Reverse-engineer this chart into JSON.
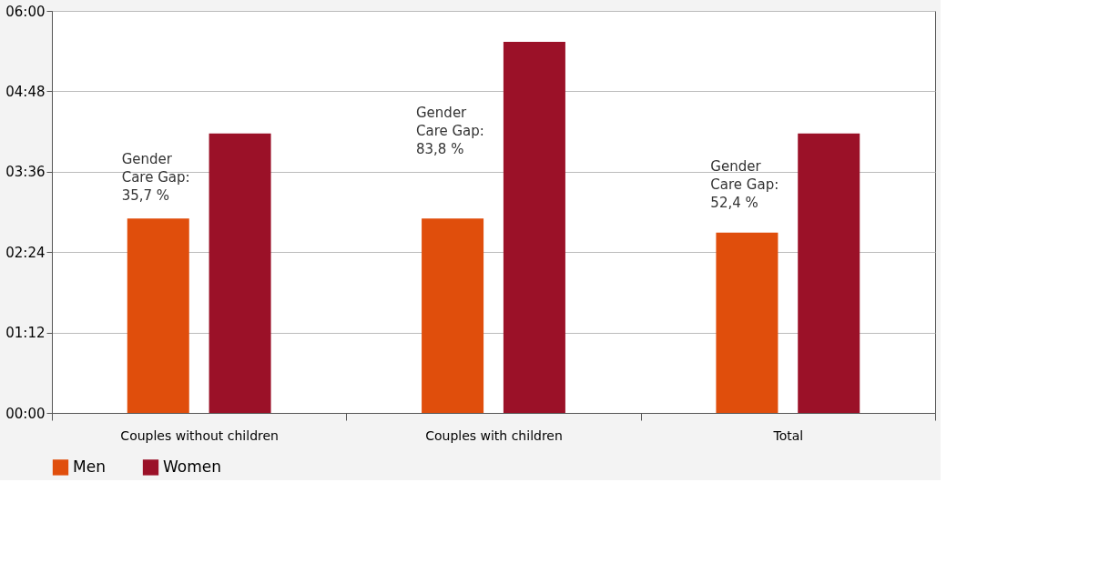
{
  "chart_data": {
    "type": "bar",
    "categories": [
      "Couples without children",
      "Couples with children",
      "Total"
    ],
    "series": [
      {
        "name": "Men",
        "color": "#e04e0c",
        "values": [
          2.9,
          2.9,
          2.69
        ]
      },
      {
        "name": "Women",
        "color": "#9b1128",
        "values": [
          4.17,
          5.54,
          4.17
        ]
      }
    ],
    "ylim": [
      0,
      6
    ],
    "yticks": [
      {
        "value": 0,
        "label": "00:00"
      },
      {
        "value": 1.2,
        "label": "01:12"
      },
      {
        "value": 2.4,
        "label": "02:24"
      },
      {
        "value": 3.6,
        "label": "03:36"
      },
      {
        "value": 4.8,
        "label": "04:48"
      },
      {
        "value": 6,
        "label": "06:00"
      }
    ],
    "annotations": [
      "Gender\nCare Gap:\n35,7 %",
      "Gender\nCare Gap:\n83,8 %",
      "Gender\nCare Gap:\n52,4 %"
    ],
    "grid": "y",
    "legend": "bottom"
  }
}
